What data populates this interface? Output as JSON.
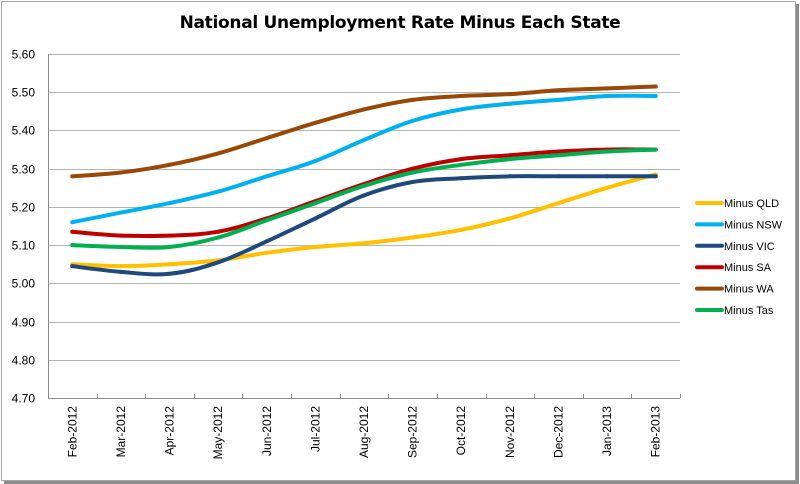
{
  "chart_data": {
    "type": "line",
    "title": "National Unemployment Rate Minus Each State",
    "xlabel": "",
    "ylabel": "",
    "ylim": [
      4.7,
      5.6
    ],
    "yticks": [
      "5.60",
      "5.50",
      "5.40",
      "5.30",
      "5.20",
      "5.10",
      "5.00",
      "4.90",
      "4.80",
      "4.70"
    ],
    "ytick_values": [
      5.6,
      5.5,
      5.4,
      5.3,
      5.2,
      5.1,
      5.0,
      4.9,
      4.8,
      4.7
    ],
    "grid": "horizontal",
    "legend_position": "right",
    "categories": [
      "Feb-2012",
      "Mar-2012",
      "Apr-2012",
      "May-2012",
      "Jun-2012",
      "Jul-2012",
      "Aug-2012",
      "Sep-2012",
      "Oct-2012",
      "Nov-2012",
      "Dec-2012",
      "Jan-2013",
      "Feb-2013"
    ],
    "series": [
      {
        "name": "Minus QLD",
        "color": "#FFC000",
        "values": [
          5.05,
          5.045,
          5.05,
          5.06,
          5.08,
          5.095,
          5.105,
          5.12,
          5.14,
          5.17,
          5.21,
          5.25,
          5.285
        ]
      },
      {
        "name": "Minus NSW",
        "color": "#00B0F0",
        "values": [
          5.16,
          5.185,
          5.21,
          5.24,
          5.28,
          5.32,
          5.375,
          5.425,
          5.455,
          5.47,
          5.48,
          5.49,
          5.49
        ]
      },
      {
        "name": "Minus VIC",
        "color": "#1F497D",
        "values": [
          5.045,
          5.03,
          5.025,
          5.055,
          5.11,
          5.17,
          5.23,
          5.265,
          5.275,
          5.28,
          5.28,
          5.28,
          5.28
        ]
      },
      {
        "name": "Minus SA",
        "color": "#C00000",
        "values": [
          5.135,
          5.125,
          5.125,
          5.135,
          5.17,
          5.215,
          5.26,
          5.3,
          5.325,
          5.335,
          5.345,
          5.35,
          5.35
        ]
      },
      {
        "name": "Minus WA",
        "color": "#984807",
        "values": [
          5.28,
          5.29,
          5.31,
          5.34,
          5.38,
          5.42,
          5.455,
          5.48,
          5.49,
          5.495,
          5.505,
          5.51,
          5.515
        ]
      },
      {
        "name": "Minus Tas",
        "color": "#00B050",
        "values": [
          5.1,
          5.095,
          5.095,
          5.12,
          5.165,
          5.21,
          5.255,
          5.29,
          5.31,
          5.325,
          5.335,
          5.345,
          5.35
        ]
      }
    ]
  }
}
